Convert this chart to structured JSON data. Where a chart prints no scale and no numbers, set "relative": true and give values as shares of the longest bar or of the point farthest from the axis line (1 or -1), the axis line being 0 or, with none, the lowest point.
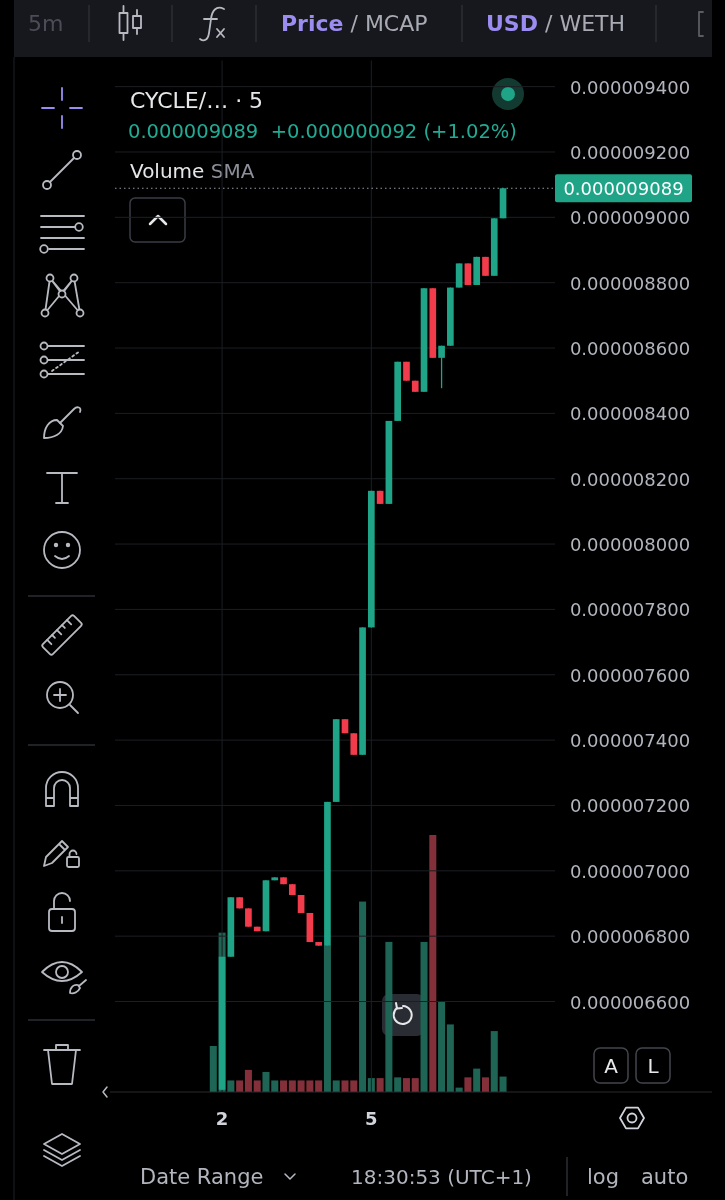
{
  "chart_data": [
    {
      "type": "candlestick",
      "title": "CYCLE/… · 5",
      "subtitle": "0.000009089  +0.000000092 (+1.02%)",
      "categories": [
        null,
        "2",
        null,
        null,
        null,
        null,
        null,
        null,
        null,
        null,
        null,
        null,
        null,
        null,
        null,
        null,
        null,
        null,
        "5",
        null,
        null,
        null,
        null,
        null,
        null,
        null,
        null,
        null,
        null,
        null,
        null,
        null,
        null,
        null
      ],
      "ohlc": [
        null,
        [
          6.33e-06,
          6.737e-06,
          6.33e-06,
          6.737e-06
        ],
        [
          6.737e-06,
          6.919e-06,
          6.737e-06,
          6.919e-06
        ],
        [
          6.919e-06,
          6.919e-06,
          6.885e-06,
          6.885e-06
        ],
        [
          6.885e-06,
          6.885e-06,
          6.829e-06,
          6.829e-06
        ],
        [
          6.829e-06,
          6.829e-06,
          6.815e-06,
          6.815e-06
        ],
        [
          6.815e-06,
          6.971e-06,
          6.815e-06,
          6.971e-06
        ],
        [
          6.971e-06,
          6.98e-06,
          6.971e-06,
          6.98e-06
        ],
        [
          6.98e-06,
          6.98e-06,
          6.959e-06,
          6.959e-06
        ],
        [
          6.959e-06,
          6.959e-06,
          6.926e-06,
          6.926e-06
        ],
        [
          6.926e-06,
          6.926e-06,
          6.871e-06,
          6.871e-06
        ],
        [
          6.871e-06,
          6.871e-06,
          6.782e-06,
          6.782e-06
        ],
        [
          6.782e-06,
          6.782e-06,
          6.771e-06,
          6.771e-06
        ],
        [
          6.771e-06,
          7.211e-06,
          6.771e-06,
          7.211e-06
        ],
        [
          7.211e-06,
          7.464e-06,
          7.211e-06,
          7.464e-06
        ],
        [
          7.464e-06,
          7.464e-06,
          7.421e-06,
          7.421e-06
        ],
        [
          7.421e-06,
          7.421e-06,
          7.355e-06,
          7.355e-06
        ],
        [
          7.355e-06,
          7.745e-06,
          7.355e-06,
          7.745e-06
        ],
        [
          7.745e-06,
          8.163e-06,
          7.745e-06,
          8.163e-06
        ],
        [
          8.163e-06,
          8.163e-06,
          8.123e-06,
          8.123e-06
        ],
        [
          8.123e-06,
          8.377e-06,
          8.123e-06,
          8.377e-06
        ],
        [
          8.377e-06,
          8.558e-06,
          8.377e-06,
          8.558e-06
        ],
        [
          8.558e-06,
          8.558e-06,
          8.5e-06,
          8.5e-06
        ],
        [
          8.5e-06,
          8.5e-06,
          8.466e-06,
          8.466e-06
        ],
        [
          8.466e-06,
          8.783e-06,
          8.466e-06,
          8.783e-06
        ],
        [
          8.783e-06,
          8.783e-06,
          8.57e-06,
          8.57e-06
        ],
        [
          8.57e-06,
          8.607e-06,
          8.477e-06,
          8.607e-06
        ],
        [
          8.607e-06,
          8.785e-06,
          8.607e-06,
          8.785e-06
        ],
        [
          8.785e-06,
          8.859e-06,
          8.785e-06,
          8.859e-06
        ],
        [
          8.859e-06,
          8.859e-06,
          8.793e-06,
          8.793e-06
        ],
        [
          8.793e-06,
          8.879e-06,
          8.793e-06,
          8.879e-06
        ],
        [
          8.879e-06,
          8.879e-06,
          8.821e-06,
          8.821e-06
        ],
        [
          8.821e-06,
          8.997e-06,
          8.821e-06,
          8.997e-06
        ],
        [
          8.997e-06,
          9.089e-06,
          8.997e-06,
          9.089e-06
        ]
      ],
      "colors": [
        null,
        "#1fa487",
        "#1fa487",
        "#f23c4c",
        "#f23c4c",
        "#f23c4c",
        "#1fa487",
        "#1fa487",
        "#f23c4c",
        "#f23c4c",
        "#f23c4c",
        "#f23c4c",
        "#f23c4c",
        "#1fa487",
        "#1fa487",
        "#f23c4c",
        "#f23c4c",
        "#1fa487",
        "#1fa487",
        "#f23c4c",
        "#1fa487",
        "#1fa487",
        "#f23c4c",
        "#f23c4c",
        "#1fa487",
        "#f23c4c",
        "#1fa487",
        "#1fa487",
        "#1fa487",
        "#f23c4c",
        "#1fa487",
        "#f23c4c",
        "#1fa487",
        "#1fa487"
      ],
      "ylim": [
        6.32e-06,
        9.48e-06
      ],
      "yticks": [
        {
          "value": 6.6e-06,
          "label": "0.000006600"
        },
        {
          "value": 6.8e-06,
          "label": "0.000006800"
        },
        {
          "value": 7e-06,
          "label": "0.000007000"
        },
        {
          "value": 7.2e-06,
          "label": "0.000007200"
        },
        {
          "value": 7.4e-06,
          "label": "0.000007400"
        },
        {
          "value": 7.6e-06,
          "label": "0.000007600"
        },
        {
          "value": 7.8e-06,
          "label": "0.000007800"
        },
        {
          "value": 8e-06,
          "label": "0.000008000"
        },
        {
          "value": 8.2e-06,
          "label": "0.000008200"
        },
        {
          "value": 8.4e-06,
          "label": "0.000008400"
        },
        {
          "value": 8.6e-06,
          "label": "0.000008600"
        },
        {
          "value": 8.8e-06,
          "label": "0.000008800"
        },
        {
          "value": 9e-06,
          "label": "0.000009000"
        },
        {
          "value": 9.2e-06,
          "label": "0.000009200"
        },
        {
          "value": 9.4e-06,
          "label": "0.000009400"
        }
      ],
      "grid": true,
      "ref_lines": [
        {
          "axis": "y",
          "value": 9.089e-06,
          "label": "0.000009089",
          "line_style": "dotted"
        }
      ],
      "annotations": [
        "5m",
        "Price / MCAP",
        "USD / WETH",
        "A",
        "L",
        "Date Range",
        "18:30:53 (UTC+1)",
        "log",
        "auto"
      ]
    },
    {
      "type": "bar",
      "title": "Volume SMA",
      "relative": true,
      "categories": [
        null,
        null,
        null,
        null,
        null,
        null,
        null,
        null,
        null,
        null,
        null,
        null,
        null,
        null,
        null,
        null,
        null,
        null,
        null,
        null,
        null,
        null,
        null,
        null,
        null,
        null,
        null,
        null,
        null,
        null,
        null,
        null,
        null,
        null
      ],
      "values": [
        0.179,
        0.62,
        0.045,
        0.045,
        0.086,
        0.045,
        0.078,
        0.045,
        0.045,
        0.045,
        0.045,
        0.045,
        0.045,
        0.571,
        0.045,
        0.045,
        0.045,
        0.741,
        0.054,
        0.054,
        0.584,
        0.057,
        0.054,
        0.054,
        0.584,
        1,
        0.354,
        0.263,
        0.017,
        0.057,
        0.091,
        0.057,
        0.237,
        0.06
      ],
      "colors": [
        "#1e6555",
        "#1e6555",
        "#1e6555",
        "#83303a",
        "#83303a",
        "#83303a",
        "#1e6555",
        "#1e6555",
        "#83303a",
        "#83303a",
        "#83303a",
        "#83303a",
        "#83303a",
        "#1e6555",
        "#1e6555",
        "#83303a",
        "#83303a",
        "#1e6555",
        "#1e6555",
        "#83303a",
        "#1e6555",
        "#1e6555",
        "#83303a",
        "#83303a",
        "#1e6555",
        "#83303a",
        "#1e6555",
        "#1e6555",
        "#1e6555",
        "#83303a",
        "#1e6555",
        "#83303a",
        "#1e6555",
        "#1e6555"
      ]
    }
  ]
}
